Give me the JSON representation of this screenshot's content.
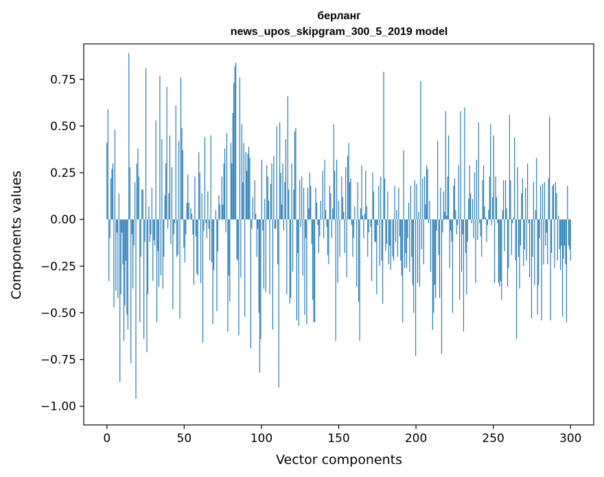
{
  "chart_data": {
    "type": "bar",
    "title": "берланг",
    "subtitle": "news_upos_skipgram_300_5_2019 model",
    "xlabel": "Vector components",
    "ylabel": "Components values",
    "xlim": [
      -15,
      315
    ],
    "ylim": [
      -1.1,
      0.94
    ],
    "x_ticks": [
      0,
      50,
      100,
      150,
      200,
      250,
      300
    ],
    "y_ticks": [
      -1.0,
      -0.75,
      -0.5,
      -0.25,
      0.0,
      0.25,
      0.5,
      0.75
    ],
    "x_tick_labels": [
      "0",
      "50",
      "100",
      "150",
      "200",
      "250",
      "300"
    ],
    "y_tick_labels": [
      "−1.00",
      "−0.75",
      "−0.50",
      "−0.25",
      "0.00",
      "0.25",
      "0.50",
      "0.75"
    ],
    "color": "#1f77b4",
    "grid": false,
    "values": [
      0.41,
      0.59,
      -0.33,
      -0.1,
      0.22,
      0.27,
      0.3,
      -0.47,
      0.48,
      -0.38,
      -0.07,
      -0.42,
      0.14,
      -0.87,
      -0.4,
      -0.07,
      -0.24,
      -0.65,
      -0.46,
      -0.22,
      -0.51,
      -0.59,
      0.89,
      0.28,
      -0.77,
      -0.08,
      -0.37,
      -0.14,
      0.2,
      -0.96,
      0.3,
      0.38,
      0.23,
      -0.55,
      -0.2,
      0.16,
      0.16,
      -0.64,
      -0.12,
      0.81,
      -0.71,
      -0.4,
      0.07,
      -0.12,
      -0.08,
      0.17,
      -0.33,
      -0.11,
      -0.14,
      0.53,
      -0.55,
      -0.17,
      -0.36,
      0.77,
      -0.3,
      0.43,
      -0.37,
      -0.2,
      0.13,
      0.3,
      0.71,
      -0.05,
      0.14,
      0.45,
      -0.13,
      0.28,
      -0.48,
      -0.08,
      -0.02,
      0.61,
      -0.2,
      -0.19,
      0.42,
      -0.53,
      0.76,
      0.49,
      0.37,
      -0.15,
      -0.23,
      -0.08,
      0.09,
      0.24,
      0.09,
      0.0,
      0.06,
      0.03,
      -0.08,
      -0.35,
      0.23,
      -0.09,
      -0.29,
      -0.3,
      0.36,
      0.25,
      -0.34,
      0.14,
      -0.66,
      -0.06,
      0.44,
      -0.02,
      -0.1,
      0.15,
      -0.05,
      -0.22,
      0.45,
      -0.23,
      -0.56,
      -0.27,
      0.0,
      0.05,
      -0.49,
      -0.17,
      0.13,
      0.08,
      0.0,
      0.23,
      0.08,
      0.3,
      0.38,
      -0.07,
      0.46,
      -0.6,
      -0.3,
      -0.44,
      0.41,
      0.3,
      0.57,
      0.73,
      0.82,
      0.84,
      -0.21,
      -0.22,
      -0.62,
      0.76,
      -0.31,
      0.51,
      0.2,
      0.41,
      -0.52,
      0.36,
      0.26,
      0.35,
      0.39,
      0.33,
      -0.69,
      -0.05,
      0.12,
      0.0,
      0.21,
      0.03,
      -0.2,
      -0.05,
      -0.5,
      -0.82,
      -0.64,
      0.32,
      -0.06,
      -0.37,
      0.11,
      -0.39,
      0.29,
      0.23,
      0.1,
      -0.4,
      0.19,
      0.3,
      -0.59,
      0.34,
      -0.05,
      -0.05,
      0.5,
      -0.24,
      -0.9,
      0.52,
      0.25,
      0.08,
      0.3,
      -0.06,
      0.2,
      0.43,
      -0.4,
      0.66,
      0.16,
      -0.45,
      -0.42,
      0.3,
      -0.28,
      0.16,
      0.47,
      0.49,
      -0.54,
      -0.18,
      -0.57,
      0.21,
      -0.04,
      0.23,
      -0.3,
      0.17,
      -0.51,
      -0.1,
      -0.56,
      0.17,
      0.06,
      0.25,
      0.18,
      -0.13,
      -0.43,
      -0.55,
      -0.55,
      0.17,
      0.09,
      -0.03,
      -0.18,
      -0.09,
      0.1,
      0.0,
      0.26,
      -0.1,
      0.32,
      0.05,
      -0.04,
      -0.19,
      -0.24,
      0.18,
      0.14,
      -0.1,
      0.06,
      0.51,
      0.26,
      -0.65,
      0.32,
      -0.34,
      0.1,
      -0.2,
      0.0,
      0.23,
      0.12,
      0.04,
      -0.18,
      0.28,
      -0.31,
      0.34,
      0.41,
      0.2,
      0.22,
      -0.03,
      -0.2,
      -0.1,
      0.07,
      0.0,
      -0.36,
      0.2,
      -0.44,
      -0.65,
      0.06,
      0.29,
      0.02,
      -0.1,
      0.03,
      0.26,
      0.07,
      -0.2,
      -0.07,
      0.0,
      -0.04,
      -0.33,
      0.25,
      0.15,
      -0.12,
      -0.12,
      -0.4,
      -0.03,
      0.18,
      -0.25,
      0.23,
      -0.22,
      -0.45,
      0.79,
      0.22,
      -0.17,
      -0.13,
      0.15,
      -0.24,
      -0.14,
      -0.27,
      0.0,
      -0.2,
      -0.22,
      0.18,
      -0.12,
      0.05,
      -0.2,
      0.17,
      -0.09,
      -0.22,
      -0.3,
      -0.55,
      0.37,
      -0.26,
      -0.18,
      -0.26,
      -0.1,
      0.09,
      -0.28,
      0.18,
      -0.2,
      -0.35,
      -0.5,
      0.21,
      -0.73,
      0.19,
      -0.34,
      0.04,
      -0.36,
      0.74,
      -0.16,
      0.22,
      -0.24,
      0.23,
      0.08,
      0.29,
      0.27,
      -0.02,
      0.1,
      -0.28,
      0.0,
      -0.59,
      -0.5,
      -0.35,
      -0.42,
      -0.06,
      0.42,
      -0.19,
      -0.42,
      0.17,
      -0.72,
      -0.07,
      0.15,
      0.04,
      0.58,
      0.02,
      0.23,
      0.45,
      -0.26,
      -0.06,
      -0.12,
      -0.5,
      0.18,
      0.22,
      0.05,
      -0.08,
      -0.03,
      0.29,
      -0.43,
      0.58,
      -0.28,
      -0.08,
      -0.6,
      0.6,
      -0.18,
      -0.4,
      -0.12,
      0.11,
      0.29,
      0.14,
      -0.02,
      0.11,
      -0.1,
      0.25,
      -0.34,
      0.32,
      -0.11,
      0.52,
      -0.02,
      -0.09,
      -0.2,
      0.21,
      0.29,
      0.07,
      0.01,
      -0.12,
      -0.03,
      0.05,
      0.23,
      0.51,
      -0.03,
      0.12,
      0.45,
      -0.34,
      0.23,
      0.12,
      -0.02,
      -0.34,
      -0.36,
      -0.33,
      -0.43,
      0.05,
      0.21,
      -0.17,
      0.21,
      0.06,
      -0.36,
      -0.26,
      0.56,
      0.21,
      -0.19,
      -0.02,
      0.01,
      0.44,
      -0.22,
      -0.64,
      0.28,
      -0.2,
      -0.37,
      -0.14,
      0.14,
      0.22,
      -0.25,
      -0.16,
      0.17,
      -0.22,
      0.3,
      -0.02,
      -0.31,
      0.0,
      -0.53,
      -0.2,
      0.2,
      -0.35,
      0.05,
      0.33,
      -0.51,
      -0.35,
      -0.1,
      0.18,
      -0.54,
      0.19,
      -0.24,
      0.2,
      -0.14,
      -0.07,
      -0.24,
      0.22,
      0.55,
      -0.54,
      -0.18,
      0.18,
      0.19,
      -0.26,
      0.2,
      0.14,
      -0.22,
      0.02,
      -0.16,
      -0.27,
      -0.14,
      -0.52,
      -0.21,
      -0.14,
      -0.24,
      -0.55,
      0.18,
      -0.14,
      -0.16,
      -0.22
    ]
  }
}
